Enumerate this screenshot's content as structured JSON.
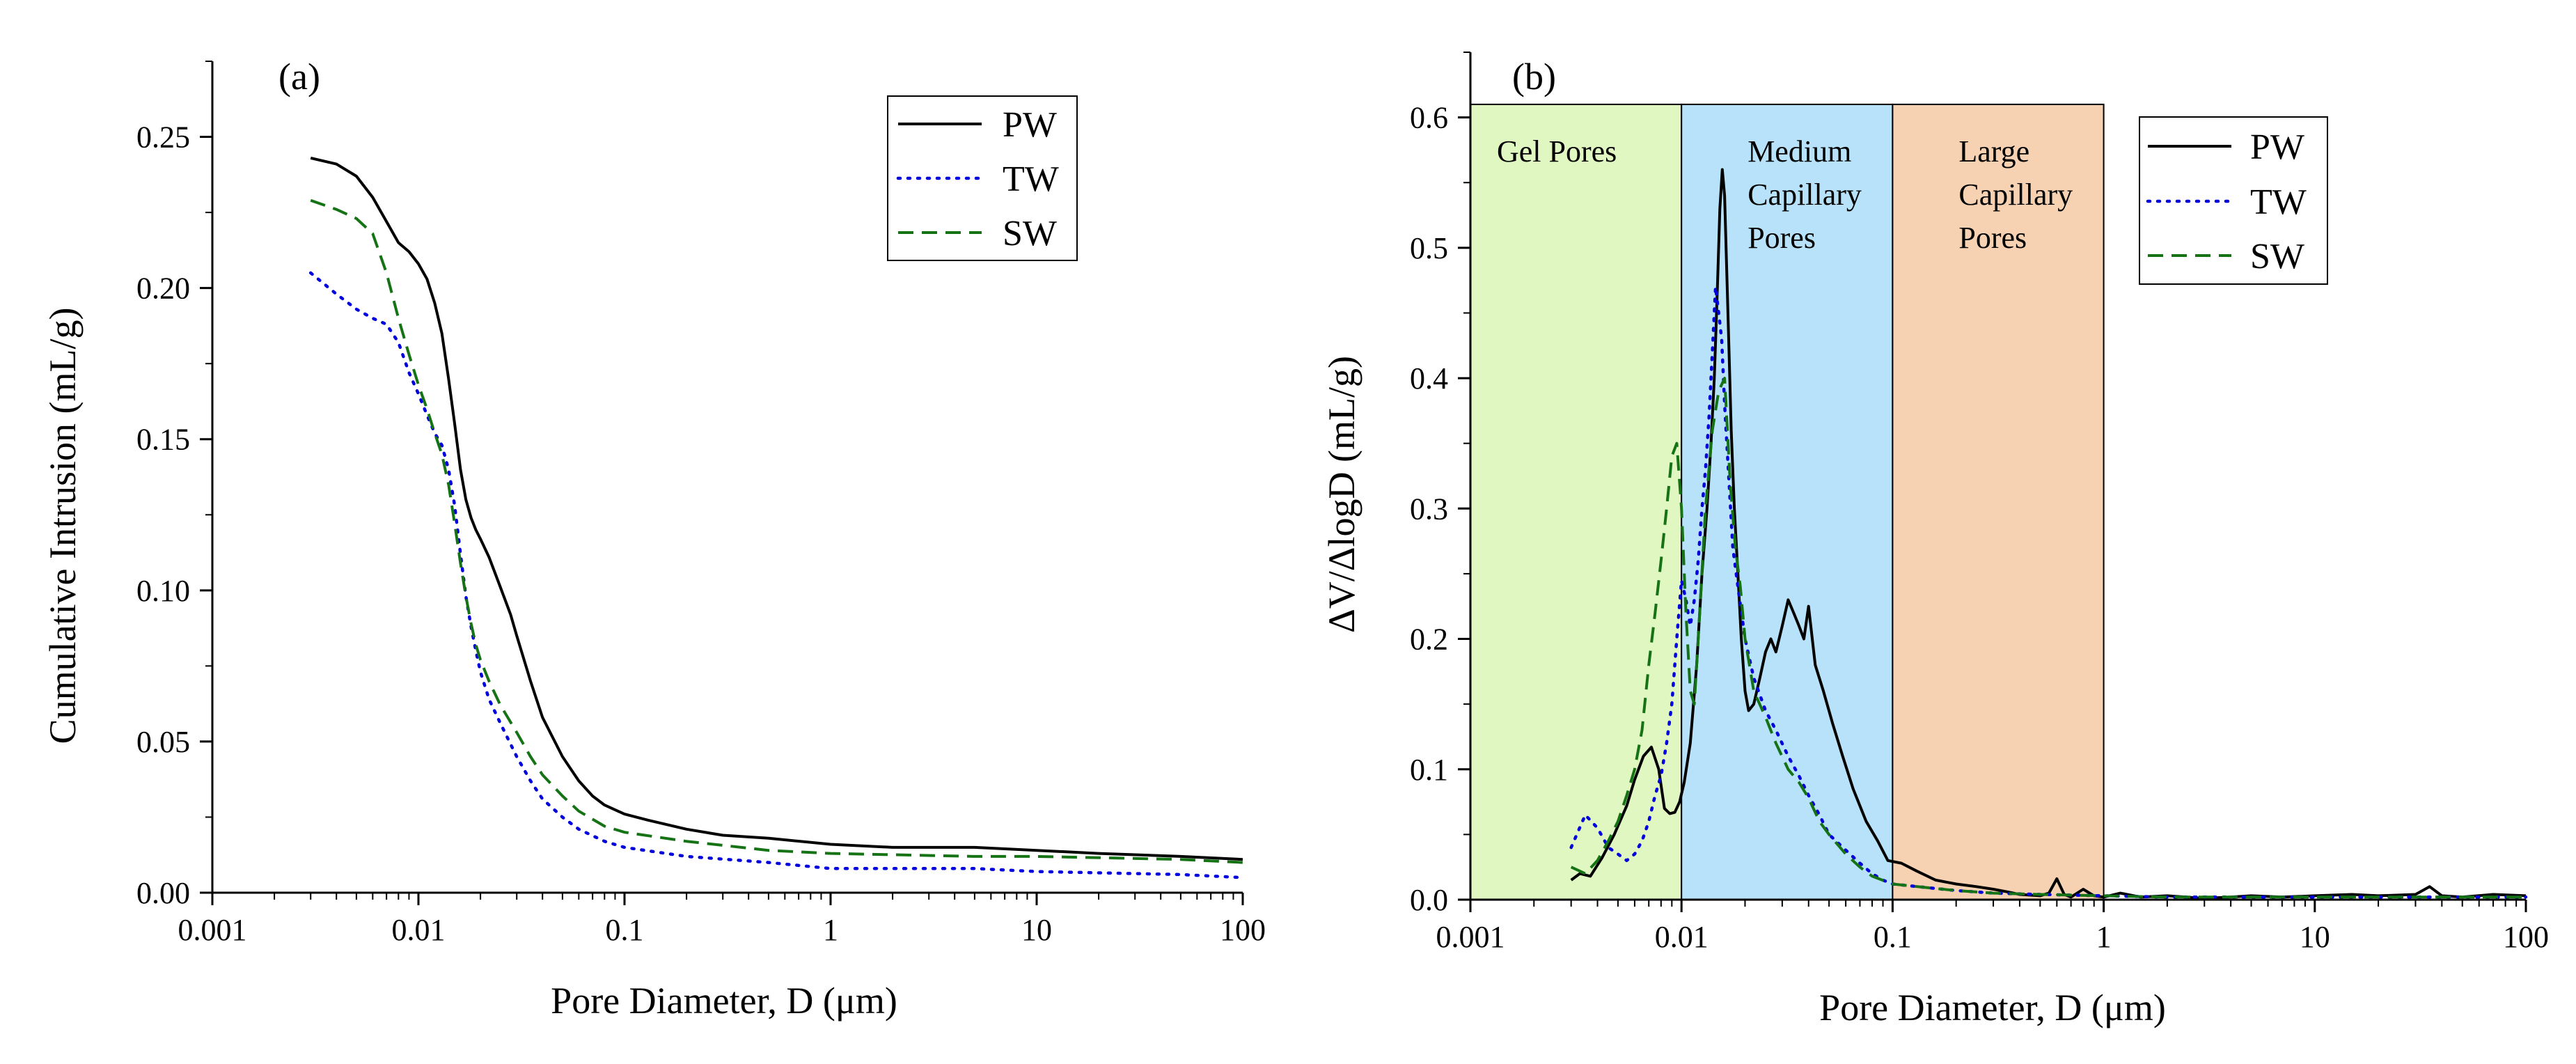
{
  "figure": {
    "colors": {
      "PW": "#000000",
      "TW": "#0000dd",
      "SW": "#157315",
      "gel_region": "#e0f7c2",
      "medium_region": "#b7e2f9",
      "large_region": "#f6d2b2"
    }
  },
  "chart_data": [
    {
      "type": "line",
      "panel_label": "(a)",
      "title": "",
      "xlabel": "Pore Diameter, D (μm)",
      "ylabel": "Cumulative Intrusion (mL/g)",
      "xscale": "log",
      "xlim": [
        0.001,
        100
      ],
      "ylim": [
        0,
        0.275
      ],
      "xticks": [
        0.001,
        0.01,
        0.1,
        1,
        10,
        100
      ],
      "xtick_labels": [
        "0.001",
        "0.01",
        "0.1",
        "1",
        "10",
        "100"
      ],
      "yticks": [
        0,
        0.05,
        0.1,
        0.15,
        0.2,
        0.25
      ],
      "ytick_labels": [
        "0.00",
        "0.05",
        "0.10",
        "0.15",
        "0.20",
        "0.25"
      ],
      "legend_position": "top-right",
      "grid": false,
      "series": [
        {
          "name": "PW",
          "style": "solid",
          "color": "#000000",
          "x": [
            0.003,
            0.004,
            0.005,
            0.006,
            0.007,
            0.008,
            0.009,
            0.01,
            0.011,
            0.012,
            0.013,
            0.014,
            0.015,
            0.016,
            0.017,
            0.018,
            0.019,
            0.02,
            0.022,
            0.025,
            0.028,
            0.03,
            0.035,
            0.04,
            0.05,
            0.06,
            0.07,
            0.08,
            0.1,
            0.13,
            0.2,
            0.3,
            0.5,
            1,
            2,
            5,
            10,
            20,
            50,
            100
          ],
          "y": [
            0.243,
            0.241,
            0.237,
            0.23,
            0.222,
            0.215,
            0.212,
            0.208,
            0.203,
            0.195,
            0.185,
            0.17,
            0.155,
            0.14,
            0.13,
            0.124,
            0.12,
            0.117,
            0.111,
            0.101,
            0.092,
            0.085,
            0.07,
            0.058,
            0.045,
            0.037,
            0.032,
            0.029,
            0.026,
            0.024,
            0.021,
            0.019,
            0.018,
            0.016,
            0.015,
            0.015,
            0.014,
            0.013,
            0.012,
            0.011
          ]
        },
        {
          "name": "TW",
          "style": "dotted",
          "color": "#0000dd",
          "x": [
            0.003,
            0.004,
            0.005,
            0.006,
            0.007,
            0.008,
            0.009,
            0.01,
            0.011,
            0.012,
            0.013,
            0.014,
            0.015,
            0.016,
            0.017,
            0.018,
            0.019,
            0.02,
            0.022,
            0.025,
            0.03,
            0.035,
            0.04,
            0.05,
            0.06,
            0.08,
            0.1,
            0.2,
            0.5,
            1,
            5,
            10,
            50,
            100
          ],
          "y": [
            0.205,
            0.198,
            0.193,
            0.19,
            0.188,
            0.182,
            0.172,
            0.165,
            0.158,
            0.152,
            0.148,
            0.14,
            0.128,
            0.112,
            0.098,
            0.088,
            0.08,
            0.073,
            0.064,
            0.056,
            0.045,
            0.037,
            0.031,
            0.025,
            0.021,
            0.017,
            0.015,
            0.012,
            0.01,
            0.008,
            0.008,
            0.007,
            0.006,
            0.005
          ]
        },
        {
          "name": "SW",
          "style": "dashed",
          "color": "#157315",
          "x": [
            0.003,
            0.004,
            0.005,
            0.006,
            0.007,
            0.008,
            0.009,
            0.01,
            0.011,
            0.012,
            0.013,
            0.014,
            0.015,
            0.016,
            0.017,
            0.018,
            0.019,
            0.02,
            0.022,
            0.025,
            0.03,
            0.035,
            0.04,
            0.05,
            0.06,
            0.08,
            0.1,
            0.2,
            0.5,
            1,
            5,
            10,
            50,
            100
          ],
          "y": [
            0.229,
            0.226,
            0.223,
            0.218,
            0.205,
            0.19,
            0.178,
            0.168,
            0.16,
            0.152,
            0.145,
            0.135,
            0.122,
            0.109,
            0.098,
            0.089,
            0.082,
            0.077,
            0.07,
            0.062,
            0.053,
            0.045,
            0.039,
            0.032,
            0.027,
            0.022,
            0.02,
            0.017,
            0.014,
            0.013,
            0.012,
            0.012,
            0.011,
            0.01
          ]
        }
      ]
    },
    {
      "type": "line",
      "panel_label": "(b)",
      "title": "",
      "xlabel": "Pore Diameter, D (μm)",
      "ylabel": "ΔV/ΔlogD (mL/g)",
      "xscale": "log",
      "xlim": [
        0.001,
        100
      ],
      "ylim": [
        0,
        0.65
      ],
      "xticks": [
        0.001,
        0.01,
        0.1,
        1,
        10,
        100
      ],
      "xtick_labels": [
        "0.001",
        "0.01",
        "0.1",
        "1",
        "10",
        "100"
      ],
      "yticks": [
        0,
        0.1,
        0.2,
        0.3,
        0.4,
        0.5,
        0.6
      ],
      "ytick_labels": [
        "0.0",
        "0.1",
        "0.2",
        "0.3",
        "0.4",
        "0.5",
        "0.6"
      ],
      "legend_position": "top-right",
      "grid": false,
      "regions": [
        {
          "name": "gel",
          "label_lines": [
            "Gel Pores"
          ],
          "x_start": 0.001,
          "x_end": 0.01,
          "y_top": 0.61
        },
        {
          "name": "medium",
          "label_lines": [
            "Medium",
            "Capillary",
            "Pores"
          ],
          "x_start": 0.01,
          "x_end": 0.1,
          "y_top": 0.61
        },
        {
          "name": "large",
          "label_lines": [
            "Large",
            "Capillary",
            "Pores"
          ],
          "x_start": 0.1,
          "x_end": 1,
          "y_top": 0.61
        }
      ],
      "series": [
        {
          "name": "PW",
          "style": "solid",
          "color": "#000000",
          "x": [
            0.003,
            0.0033,
            0.0037,
            0.0042,
            0.0048,
            0.0055,
            0.006,
            0.0066,
            0.0072,
            0.0078,
            0.0083,
            0.0088,
            0.0093,
            0.0098,
            0.0103,
            0.011,
            0.0118,
            0.0125,
            0.0132,
            0.0138,
            0.0143,
            0.0148,
            0.0152,
            0.0156,
            0.016,
            0.0164,
            0.0168,
            0.0172,
            0.0178,
            0.0185,
            0.0192,
            0.02,
            0.0208,
            0.022,
            0.0235,
            0.025,
            0.0265,
            0.028,
            0.03,
            0.032,
            0.034,
            0.036,
            0.038,
            0.04,
            0.043,
            0.047,
            0.052,
            0.058,
            0.065,
            0.075,
            0.085,
            0.095,
            0.11,
            0.13,
            0.16,
            0.2,
            0.25,
            0.3,
            0.35,
            0.4,
            0.5,
            0.55,
            0.6,
            0.65,
            0.7,
            0.8,
            0.9,
            1,
            1.2,
            1.5,
            2,
            3,
            4,
            5,
            7,
            10,
            15,
            20,
            30,
            35,
            40,
            50,
            70,
            100
          ],
          "y": [
            0.015,
            0.02,
            0.018,
            0.032,
            0.05,
            0.072,
            0.092,
            0.11,
            0.117,
            0.1,
            0.07,
            0.066,
            0.067,
            0.075,
            0.09,
            0.12,
            0.18,
            0.25,
            0.3,
            0.35,
            0.4,
            0.47,
            0.53,
            0.56,
            0.54,
            0.48,
            0.42,
            0.36,
            0.3,
            0.25,
            0.2,
            0.16,
            0.145,
            0.15,
            0.17,
            0.19,
            0.2,
            0.19,
            0.21,
            0.23,
            0.22,
            0.21,
            0.2,
            0.225,
            0.18,
            0.16,
            0.135,
            0.11,
            0.085,
            0.06,
            0.045,
            0.03,
            0.028,
            0.022,
            0.015,
            0.012,
            0.01,
            0.008,
            0.006,
            0.004,
            0.003,
            0.005,
            0.016,
            0.004,
            0.002,
            0.008,
            0.003,
            0.002,
            0.005,
            0.002,
            0.003,
            0.001,
            0.002,
            0.003,
            0.002,
            0.003,
            0.004,
            0.003,
            0.004,
            0.01,
            0.003,
            0.002,
            0.004,
            0.003
          ]
        },
        {
          "name": "TW",
          "style": "dotted",
          "color": "#0000dd",
          "x": [
            0.003,
            0.0035,
            0.004,
            0.0045,
            0.005,
            0.0055,
            0.006,
            0.0065,
            0.007,
            0.0075,
            0.008,
            0.0085,
            0.009,
            0.0095,
            0.01,
            0.0105,
            0.011,
            0.0115,
            0.012,
            0.0125,
            0.013,
            0.0135,
            0.014,
            0.0145,
            0.015,
            0.0155,
            0.016,
            0.0168,
            0.0175,
            0.0185,
            0.02,
            0.022,
            0.025,
            0.028,
            0.032,
            0.036,
            0.04,
            0.045,
            0.05,
            0.06,
            0.07,
            0.08,
            0.09,
            0.1,
            0.15,
            0.2,
            0.3,
            0.5,
            1,
            2,
            5,
            10,
            20,
            50,
            100
          ],
          "y": [
            0.04,
            0.065,
            0.055,
            0.04,
            0.035,
            0.03,
            0.035,
            0.045,
            0.06,
            0.08,
            0.095,
            0.12,
            0.15,
            0.2,
            0.245,
            0.23,
            0.21,
            0.23,
            0.26,
            0.3,
            0.33,
            0.37,
            0.42,
            0.47,
            0.45,
            0.43,
            0.38,
            0.32,
            0.27,
            0.24,
            0.2,
            0.17,
            0.145,
            0.13,
            0.11,
            0.095,
            0.08,
            0.065,
            0.05,
            0.038,
            0.028,
            0.02,
            0.015,
            0.012,
            0.009,
            0.007,
            0.005,
            0.004,
            0.003,
            0.002,
            0.002,
            0.002,
            0.002,
            0.002,
            0.002
          ]
        },
        {
          "name": "SW",
          "style": "dashed",
          "color": "#157315",
          "x": [
            0.003,
            0.0035,
            0.004,
            0.0045,
            0.005,
            0.0055,
            0.006,
            0.0065,
            0.007,
            0.0075,
            0.008,
            0.0085,
            0.009,
            0.0095,
            0.01,
            0.0105,
            0.011,
            0.0115,
            0.012,
            0.013,
            0.014,
            0.015,
            0.016,
            0.017,
            0.018,
            0.019,
            0.02,
            0.022,
            0.025,
            0.028,
            0.032,
            0.036,
            0.04,
            0.045,
            0.05,
            0.06,
            0.07,
            0.08,
            0.1,
            0.15,
            0.2,
            0.3,
            0.5,
            1,
            2,
            5,
            10,
            20,
            50,
            100
          ],
          "y": [
            0.025,
            0.02,
            0.03,
            0.045,
            0.06,
            0.08,
            0.1,
            0.13,
            0.18,
            0.22,
            0.26,
            0.3,
            0.34,
            0.35,
            0.3,
            0.22,
            0.16,
            0.15,
            0.2,
            0.3,
            0.36,
            0.39,
            0.4,
            0.32,
            0.27,
            0.24,
            0.2,
            0.16,
            0.14,
            0.12,
            0.1,
            0.09,
            0.078,
            0.06,
            0.05,
            0.035,
            0.025,
            0.018,
            0.012,
            0.009,
            0.007,
            0.005,
            0.004,
            0.003,
            0.002,
            0.002,
            0.002,
            0.002,
            0.002,
            0.002
          ]
        }
      ]
    }
  ]
}
